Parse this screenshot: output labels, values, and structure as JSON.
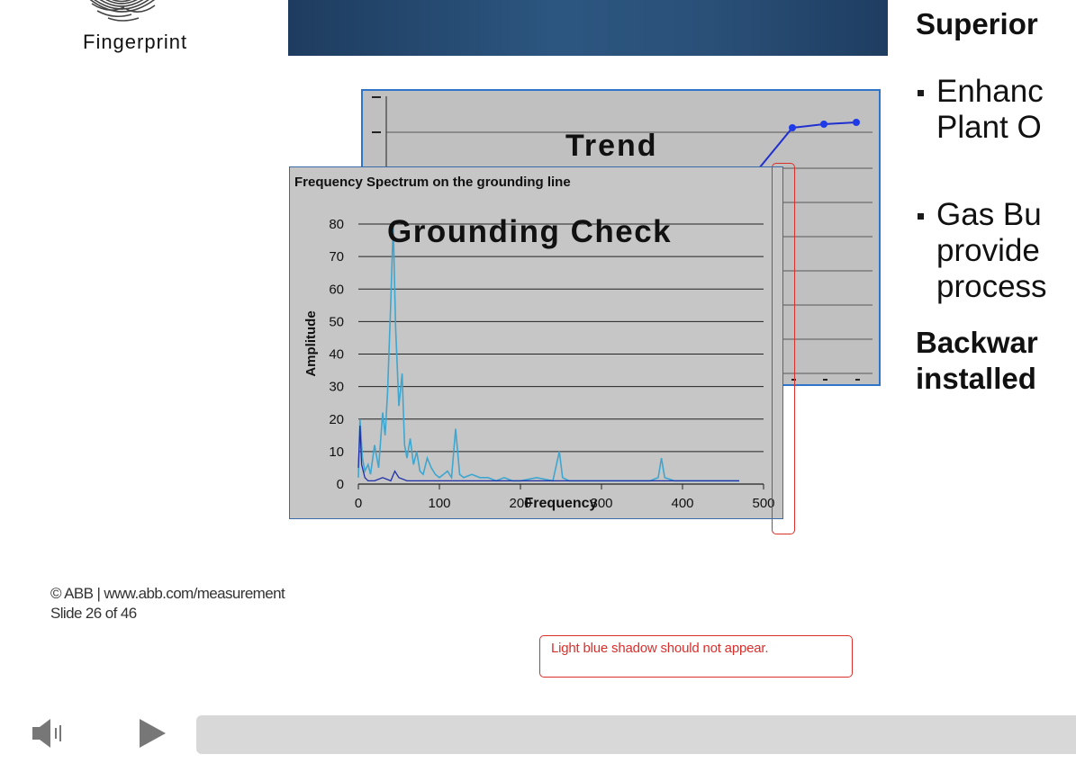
{
  "fingerprint": {
    "label": "Fingerprint"
  },
  "trend_chart": {
    "title": "Trend"
  },
  "spectrum_chart": {
    "overlay_title": "Grounding Check"
  },
  "right_panel": {
    "heading1": "Superior",
    "bullets": [
      {
        "lines": [
          "Enhanc",
          "Plant O"
        ]
      },
      {
        "lines": [
          "Gas Bu",
          "provide",
          "process"
        ]
      }
    ],
    "heading2_lines": [
      "Backwar",
      "installed"
    ]
  },
  "footer": {
    "copyright": "© ABB | www.abb.com/measurement",
    "slide": "Slide 26 of 46"
  },
  "annotation": {
    "note": "Light blue shadow should not appear."
  },
  "player": {
    "volume_icon": "speaker-icon",
    "play_icon": "play-icon",
    "progress": 0
  },
  "colors": {
    "spectrum_series": "#3fa6cf",
    "grounding_series": "#1f2fa8",
    "trend_line": "#1f2fd0",
    "annotation_red": "#d9302c"
  },
  "chart_data": [
    {
      "type": "line",
      "title": "Frequency Spectrum on the grounding line",
      "xlabel": "Frequency",
      "ylabel": "Amplitude",
      "xlim": [
        0,
        500
      ],
      "ylim": [
        0,
        80
      ],
      "x_ticks": [
        0,
        100,
        200,
        300,
        400,
        500
      ],
      "y_ticks": [
        0,
        10,
        20,
        30,
        40,
        50,
        60,
        70,
        80
      ],
      "grid": true,
      "series": [
        {
          "x": [
            0,
            2,
            5,
            8,
            12,
            15,
            20,
            25,
            30,
            33,
            36,
            40,
            43,
            46,
            50,
            54,
            57,
            60,
            64,
            68,
            72,
            76,
            80,
            85,
            90,
            95,
            100,
            105,
            110,
            115,
            120,
            125,
            130,
            140,
            150,
            160,
            170,
            180,
            190,
            200,
            220,
            240,
            248,
            252,
            260,
            280,
            300,
            320,
            340,
            360,
            370,
            374,
            378,
            390,
            410,
            430,
            450,
            470
          ],
          "y": [
            2,
            20,
            8,
            4,
            6,
            3,
            12,
            5,
            22,
            15,
            28,
            56,
            80,
            48,
            24,
            34,
            12,
            8,
            14,
            6,
            10,
            4,
            3,
            8,
            5,
            3,
            2,
            3,
            4,
            2,
            17,
            3,
            2,
            3,
            2,
            2,
            1,
            2,
            1,
            1,
            2,
            1,
            10,
            2,
            1,
            1,
            1,
            1,
            1,
            1,
            2,
            8,
            2,
            1,
            1,
            1,
            1,
            1
          ]
        },
        {
          "x": [
            0,
            2,
            4,
            8,
            12,
            20,
            30,
            40,
            45,
            50,
            60,
            80,
            100,
            150,
            200,
            300,
            400,
            470
          ],
          "y": [
            5,
            18,
            6,
            2,
            1,
            1,
            2,
            1,
            4,
            2,
            1,
            1,
            1,
            1,
            1,
            1,
            1,
            1
          ]
        }
      ]
    }
  ]
}
